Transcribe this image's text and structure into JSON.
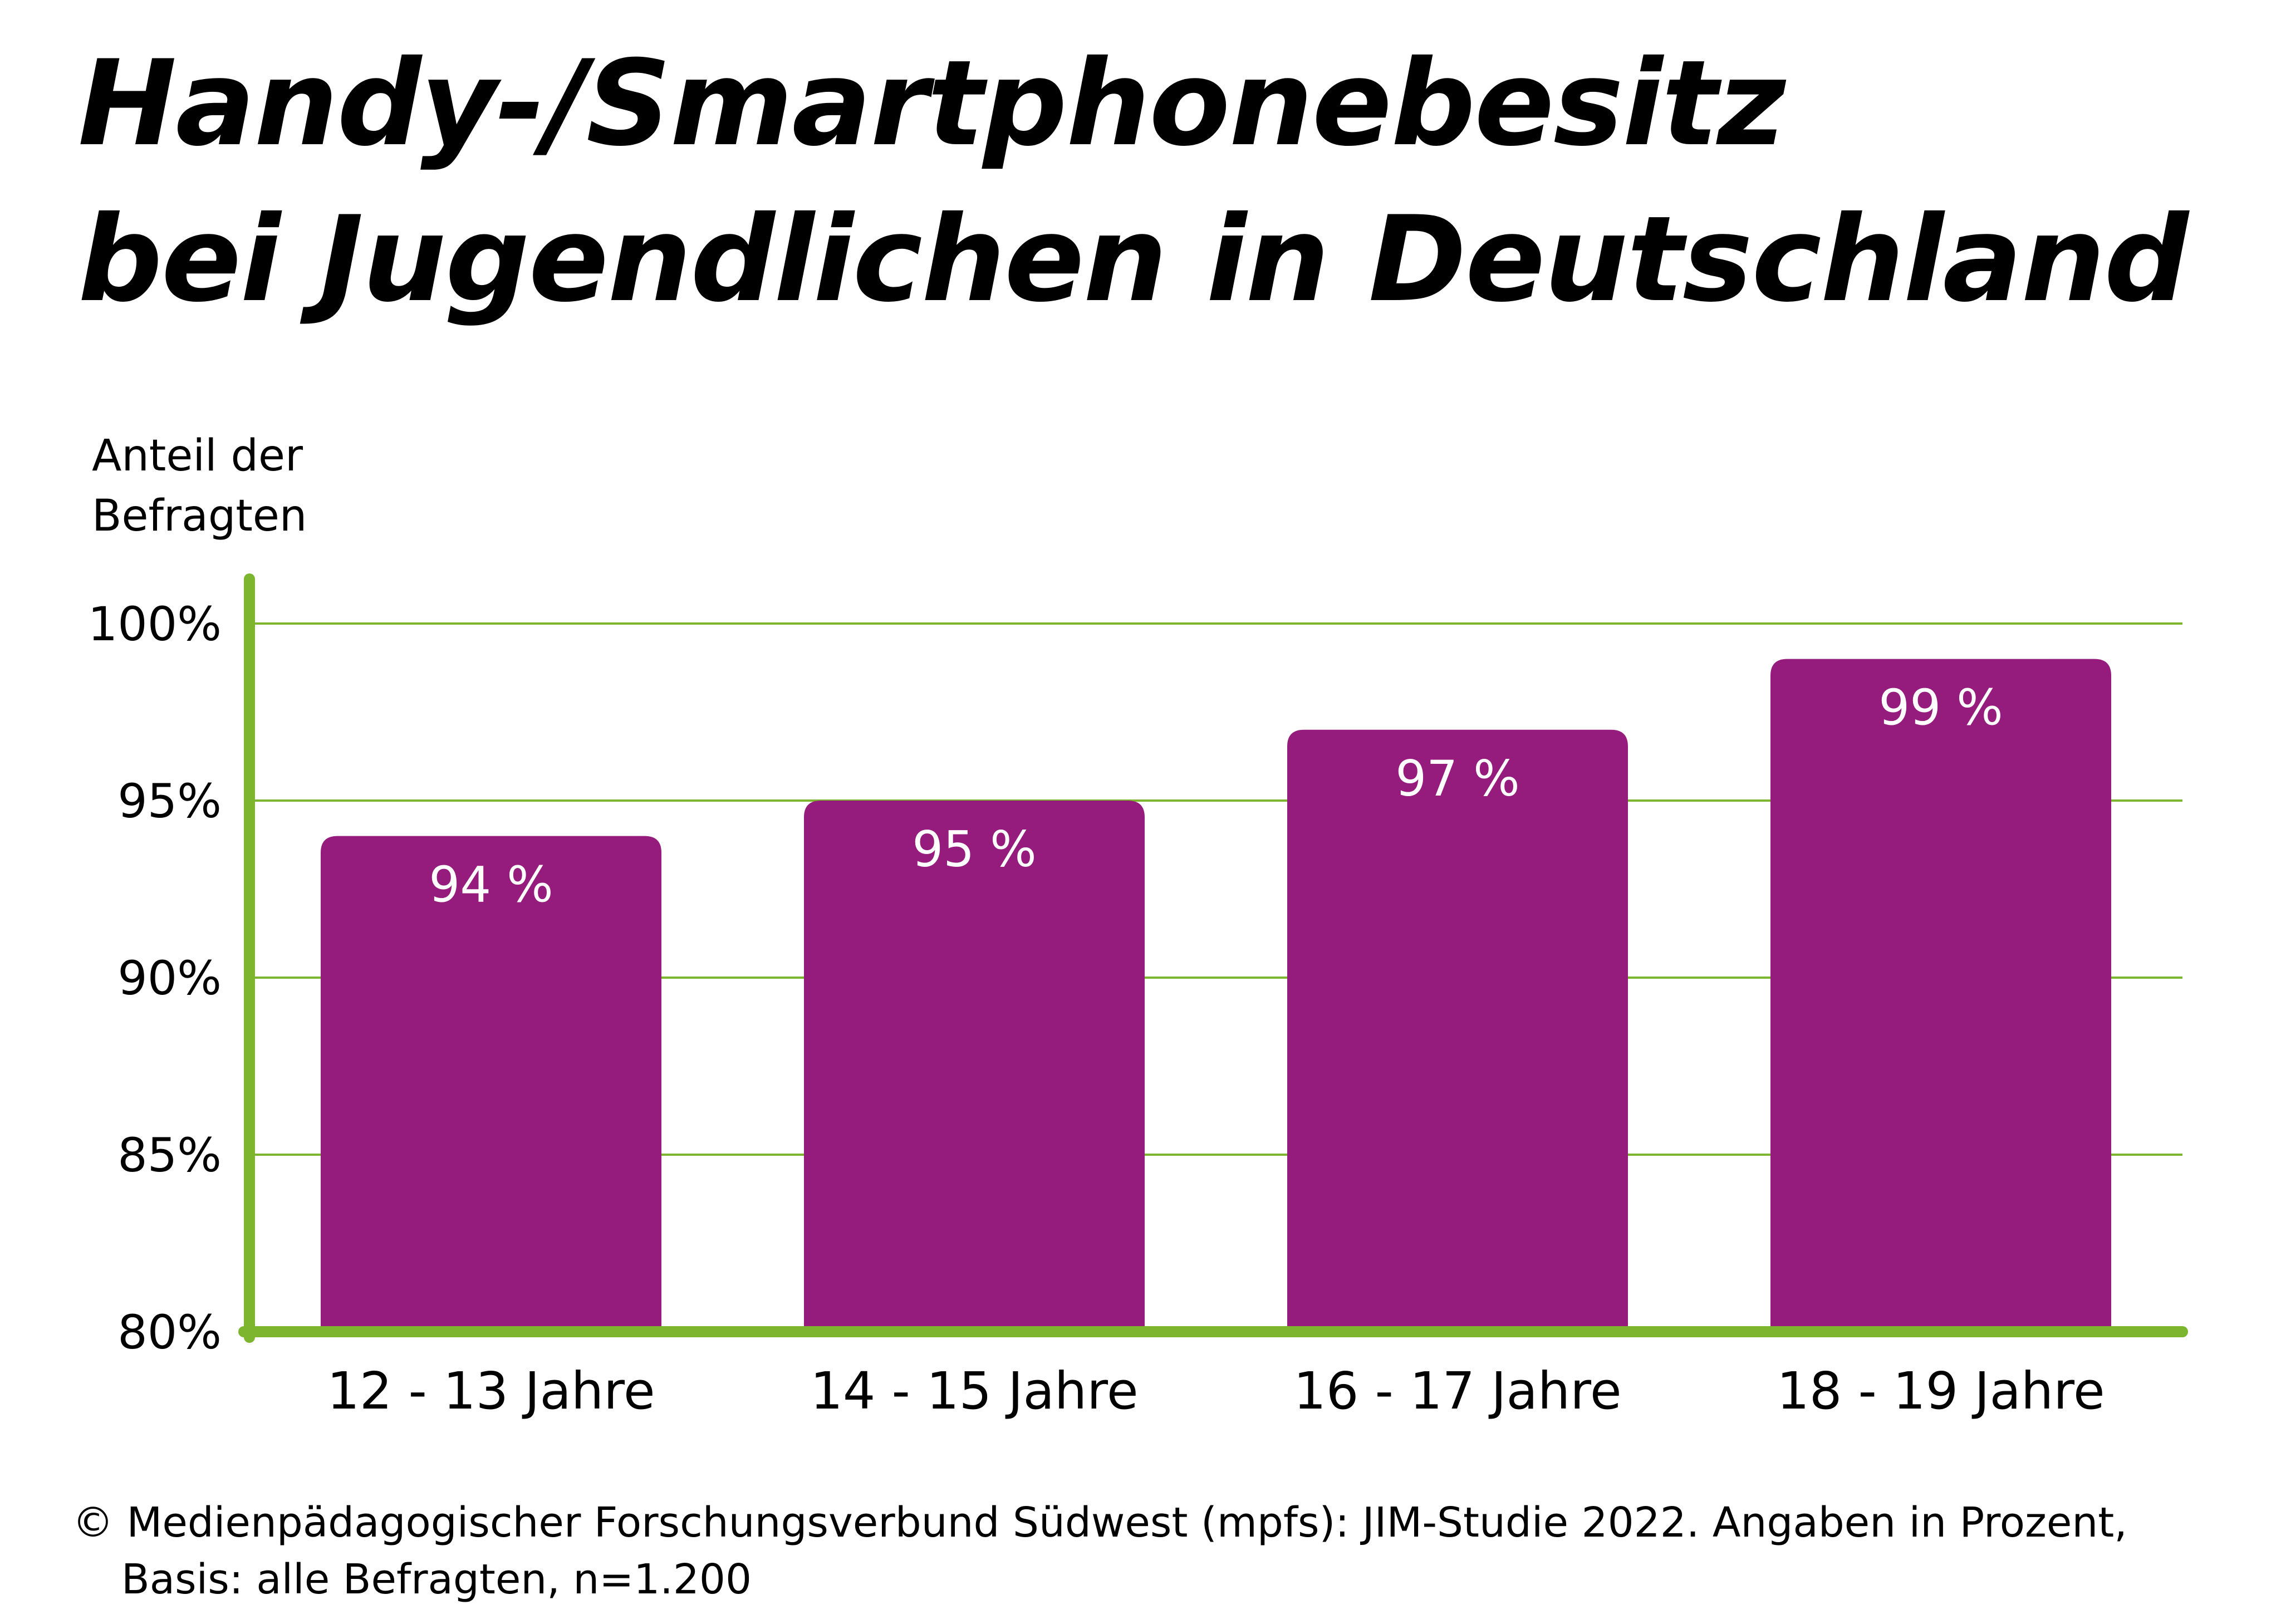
{
  "title": [
    "Handy-/Smartphonebesitz",
    "bei Jugendlichen in Deutschland"
  ],
  "ylabel": [
    "Anteil der",
    "Befragten"
  ],
  "source": [
    "© Medienpädagogischer Forschungsverbund Südwest (mpfs): JIM-Studie 2022. Angaben in Prozent,",
    "Basis: alle Befragten, n=1.200"
  ],
  "colors": {
    "bar": "#951b7c",
    "axis": "#7db52f",
    "grid": "#7db52f",
    "bar_label": "#ffffff",
    "text": "#000000"
  },
  "chart_data": {
    "type": "bar",
    "categories": [
      "12 - 13 Jahre",
      "14 - 15 Jahre",
      "16 - 17 Jahre",
      "18 - 19 Jahre"
    ],
    "values": [
      94,
      95,
      97,
      99
    ],
    "value_labels": [
      "94 %",
      "95 %",
      "97 %",
      "99 %"
    ],
    "ylim": [
      80,
      100
    ],
    "yticks": [
      80,
      85,
      90,
      95,
      100
    ],
    "ytick_labels": [
      "80%",
      "85%",
      "90%",
      "95%",
      "100%"
    ],
    "grid": true,
    "legend": "none"
  }
}
